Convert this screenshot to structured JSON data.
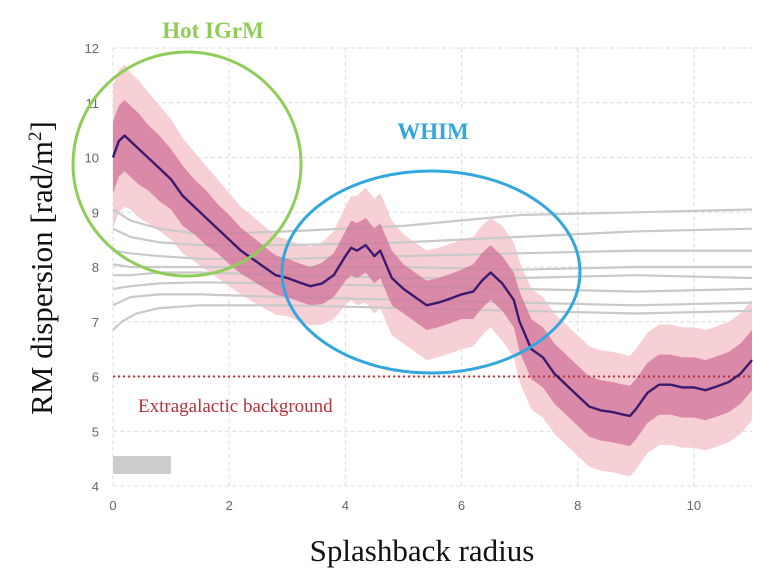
{
  "chart_data": {
    "type": "line",
    "xlabel": "Splashback radius",
    "ylabel_main": "RM dispersion [rad/m",
    "ylabel_sup": "2",
    "ylabel_close": "]",
    "xlim": [
      0,
      11
    ],
    "ylim": [
      4,
      12
    ],
    "xticks": [
      "0",
      "2",
      "4",
      "6",
      "8",
      "10"
    ],
    "yticks": [
      "4",
      "5",
      "6",
      "7",
      "8",
      "9",
      "10",
      "11",
      "12"
    ],
    "grid": true,
    "grid_style": "dashed",
    "colors": {
      "main_line": "#3b1a6e",
      "inner_band": "#cf6f95",
      "outer_band": "#f6c8cf",
      "gray_lines": "#c9c9c9",
      "background_line": "#b8323a",
      "hot_circle": "#8fcd58",
      "whim_circle": "#33a6dd",
      "legend_box": "#cccccc"
    },
    "main_series": {
      "x": [
        0,
        0.1,
        0.2,
        0.3,
        0.45,
        0.6,
        0.8,
        1.0,
        1.2,
        1.4,
        1.6,
        1.8,
        2.0,
        2.2,
        2.4,
        2.6,
        2.8,
        3.0,
        3.2,
        3.4,
        3.6,
        3.8,
        4.0,
        4.1,
        4.2,
        4.35,
        4.5,
        4.6,
        4.7,
        4.8,
        5.0,
        5.2,
        5.4,
        5.6,
        5.8,
        6.0,
        6.2,
        6.35,
        6.5,
        6.7,
        6.9,
        7.0,
        7.2,
        7.4,
        7.6,
        7.8,
        8.0,
        8.2,
        8.4,
        8.6,
        8.8,
        8.9,
        9.0,
        9.2,
        9.4,
        9.6,
        9.8,
        10.0,
        10.2,
        10.4,
        10.6,
        10.8,
        11.0
      ],
      "y": [
        10.0,
        10.3,
        10.4,
        10.3,
        10.15,
        10.0,
        9.8,
        9.6,
        9.3,
        9.1,
        8.9,
        8.7,
        8.5,
        8.3,
        8.15,
        8.0,
        7.85,
        7.8,
        7.72,
        7.65,
        7.7,
        7.85,
        8.2,
        8.35,
        8.3,
        8.4,
        8.2,
        8.3,
        8.05,
        7.8,
        7.6,
        7.45,
        7.3,
        7.35,
        7.42,
        7.5,
        7.55,
        7.75,
        7.9,
        7.7,
        7.4,
        7.0,
        6.5,
        6.35,
        6.05,
        5.85,
        5.65,
        5.45,
        5.38,
        5.35,
        5.3,
        5.28,
        5.4,
        5.7,
        5.85,
        5.85,
        5.8,
        5.8,
        5.75,
        5.82,
        5.9,
        6.05,
        6.3
      ]
    },
    "inner_band_halfwidth": [
      0.65,
      0.65,
      0.65,
      0.65,
      0.65,
      0.6,
      0.6,
      0.55,
      0.55,
      0.5,
      0.5,
      0.45,
      0.45,
      0.42,
      0.4,
      0.38,
      0.36,
      0.35,
      0.35,
      0.35,
      0.38,
      0.4,
      0.45,
      0.5,
      0.5,
      0.5,
      0.5,
      0.5,
      0.5,
      0.5,
      0.45,
      0.45,
      0.45,
      0.45,
      0.45,
      0.45,
      0.5,
      0.5,
      0.5,
      0.5,
      0.5,
      0.55,
      0.55,
      0.55,
      0.55,
      0.55,
      0.55,
      0.55,
      0.55,
      0.55,
      0.55,
      0.55,
      0.55,
      0.55,
      0.55,
      0.55,
      0.55,
      0.55,
      0.55,
      0.55,
      0.55,
      0.55,
      0.55
    ],
    "outer_band_halfwidth": [
      1.3,
      1.3,
      1.3,
      1.25,
      1.25,
      1.2,
      1.15,
      1.1,
      1.05,
      1.0,
      0.95,
      0.9,
      0.85,
      0.8,
      0.78,
      0.75,
      0.72,
      0.7,
      0.7,
      0.72,
      0.75,
      0.8,
      0.9,
      0.95,
      1.0,
      1.05,
      1.05,
      1.05,
      1.05,
      1.05,
      1.0,
      1.0,
      1.0,
      1.0,
      1.0,
      1.0,
      1.0,
      1.0,
      1.0,
      1.05,
      1.05,
      1.1,
      1.1,
      1.1,
      1.1,
      1.1,
      1.1,
      1.1,
      1.1,
      1.1,
      1.1,
      1.1,
      1.1,
      1.1,
      1.1,
      1.1,
      1.1,
      1.1,
      1.1,
      1.1,
      1.1,
      1.1,
      1.1
    ],
    "gray_series": [
      {
        "x": [
          0,
          0.3,
          0.8,
          1.5,
          3,
          5,
          7,
          9,
          11
        ],
        "y": [
          9.05,
          8.85,
          8.7,
          8.6,
          8.65,
          8.75,
          8.95,
          9.0,
          9.05
        ]
      },
      {
        "x": [
          0,
          0.3,
          0.8,
          1.5,
          3,
          5,
          7,
          9,
          11
        ],
        "y": [
          8.7,
          8.55,
          8.45,
          8.4,
          8.4,
          8.45,
          8.55,
          8.65,
          8.7
        ]
      },
      {
        "x": [
          0,
          0.3,
          0.8,
          1.5,
          3,
          5,
          7,
          9,
          11
        ],
        "y": [
          8.3,
          8.25,
          8.2,
          8.15,
          8.15,
          8.2,
          8.25,
          8.3,
          8.3
        ]
      },
      {
        "x": [
          0,
          0.3,
          0.8,
          1.5,
          3,
          5,
          7,
          9,
          11
        ],
        "y": [
          8.05,
          8.0,
          8.0,
          8.0,
          8.0,
          8.0,
          7.95,
          8.0,
          8.0
        ]
      },
      {
        "x": [
          0,
          0.3,
          0.8,
          1.5,
          3,
          5,
          7,
          9,
          11
        ],
        "y": [
          7.85,
          7.85,
          7.9,
          7.9,
          7.85,
          7.8,
          7.8,
          7.85,
          7.8
        ]
      },
      {
        "x": [
          0,
          0.3,
          0.8,
          1.5,
          3,
          5,
          7,
          9,
          11
        ],
        "y": [
          7.6,
          7.65,
          7.7,
          7.72,
          7.7,
          7.65,
          7.6,
          7.55,
          7.6
        ]
      },
      {
        "x": [
          0,
          0.3,
          0.8,
          1.5,
          3,
          5,
          7,
          9,
          11
        ],
        "y": [
          7.3,
          7.45,
          7.5,
          7.5,
          7.45,
          7.4,
          7.35,
          7.3,
          7.35
        ]
      },
      {
        "x": [
          0,
          0.15,
          0.4,
          0.8,
          1.5,
          3,
          5,
          7,
          9,
          11
        ],
        "y": [
          6.85,
          7.0,
          7.15,
          7.25,
          7.3,
          7.3,
          7.25,
          7.2,
          7.15,
          7.2
        ]
      }
    ],
    "background_level": 6.0,
    "annotations": {
      "hot_label": "Hot IGrM",
      "whim_label": "WHIM",
      "background_label": "Extragalactic background"
    }
  }
}
